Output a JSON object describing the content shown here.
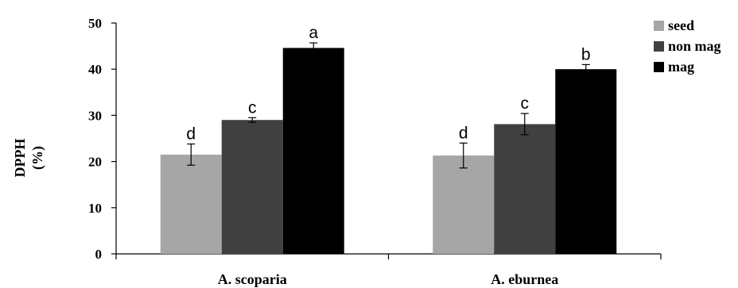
{
  "chart_data": {
    "type": "bar",
    "ylabel": [
      "DPPH",
      "(%)"
    ],
    "xlabel": "",
    "ylim": [
      0,
      50
    ],
    "yticks": [
      "0",
      "10",
      "20",
      "30",
      "40",
      "50"
    ],
    "grid": false,
    "legend_position": "top-right",
    "categories": [
      "A. scoparia",
      "A. eburnea"
    ],
    "series": [
      {
        "name": "seed",
        "color": "#a6a6a6",
        "values": [
          21.5,
          21.3
        ],
        "errors": [
          2.3,
          2.7
        ],
        "sig_labels": [
          "d",
          "d"
        ]
      },
      {
        "name": "non mag",
        "color": "#404040",
        "values": [
          29.0,
          28.1
        ],
        "errors": [
          0.5,
          2.3
        ],
        "sig_labels": [
          "c",
          "c"
        ]
      },
      {
        "name": "mag",
        "color": "#000000",
        "values": [
          44.6,
          40.0
        ],
        "errors": [
          1.1,
          1.0
        ],
        "sig_labels": [
          "a",
          "b"
        ]
      }
    ]
  }
}
